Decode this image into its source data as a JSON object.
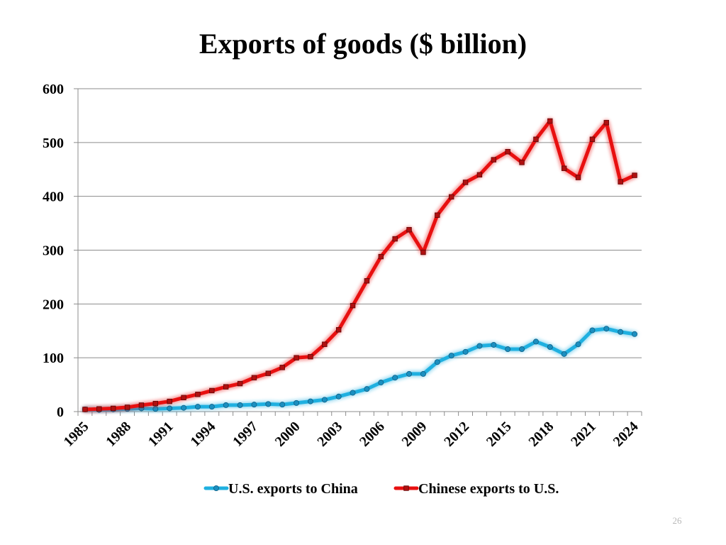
{
  "chart_data": {
    "type": "line",
    "title": "Exports of goods ($ billion)",
    "xlabel": "",
    "ylabel": "",
    "ylim": [
      0,
      600
    ],
    "yticks": [
      0,
      100,
      200,
      300,
      400,
      500,
      600
    ],
    "xtick_labels": [
      "1985",
      "1988",
      "1991",
      "1994",
      "1997",
      "2000",
      "2003",
      "2006",
      "2009",
      "2012",
      "2015",
      "2018",
      "2021",
      "2024"
    ],
    "x": [
      1985,
      1986,
      1987,
      1988,
      1989,
      1990,
      1991,
      1992,
      1993,
      1994,
      1995,
      1996,
      1997,
      1998,
      1999,
      2000,
      2001,
      2002,
      2003,
      2004,
      2005,
      2006,
      2007,
      2008,
      2009,
      2010,
      2011,
      2012,
      2013,
      2014,
      2015,
      2016,
      2017,
      2018,
      2019,
      2020,
      2021,
      2022,
      2023,
      2024
    ],
    "grid": true,
    "legend_position": "bottom",
    "series": [
      {
        "name": "U.S. exports to China",
        "color": "#1fb0e0",
        "values": [
          4,
          3,
          4,
          5,
          6,
          5,
          6,
          7,
          9,
          9,
          12,
          12,
          13,
          14,
          13,
          16,
          19,
          22,
          28,
          35,
          42,
          54,
          63,
          70,
          70,
          92,
          104,
          111,
          122,
          124,
          116,
          116,
          130,
          120,
          107,
          125,
          151,
          154,
          148,
          144
        ]
      },
      {
        "name": "Chinese exports to U.S.",
        "color": "#e81010",
        "values": [
          4,
          5,
          6,
          8,
          12,
          15,
          19,
          26,
          32,
          39,
          46,
          52,
          63,
          71,
          82,
          100,
          102,
          125,
          152,
          197,
          243,
          288,
          321,
          338,
          296,
          365,
          399,
          426,
          440,
          468,
          483,
          463,
          506,
          540,
          452,
          435,
          506,
          537,
          427,
          439
        ]
      }
    ]
  },
  "footer": {
    "page_number": "26"
  }
}
